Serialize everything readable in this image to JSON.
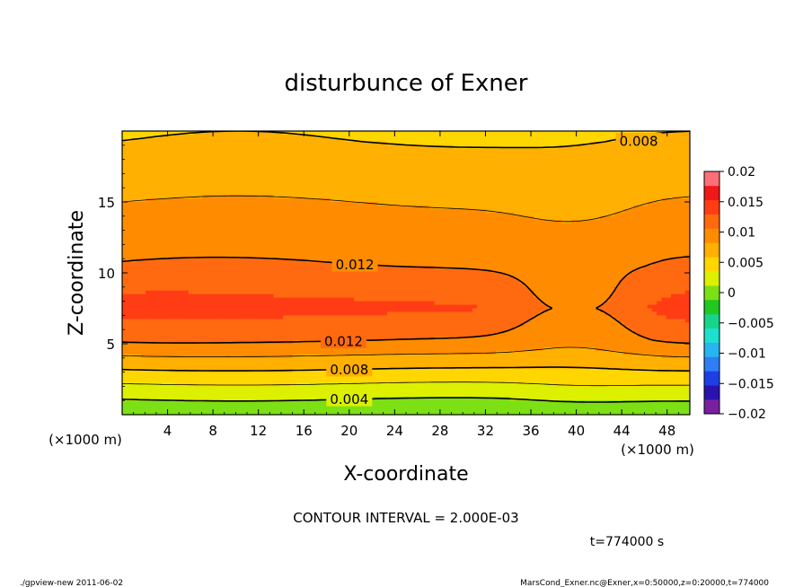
{
  "chart_data": {
    "type": "heatmap",
    "title": "disturbunce of Exner",
    "xlabel": "X-coordinate",
    "ylabel": "Z-coordinate",
    "x_unit": "(×1000 m)",
    "y_unit": "(×1000 m)",
    "xlim": [
      0,
      50
    ],
    "ylim": [
      0,
      20
    ],
    "x_ticks": [
      4,
      8,
      12,
      16,
      20,
      24,
      28,
      32,
      36,
      40,
      44,
      48
    ],
    "y_ticks": [
      5,
      10,
      15
    ],
    "x_tick_labels": [
      "4",
      "8",
      "12",
      "16",
      "20",
      "24",
      "28",
      "32",
      "36",
      "40",
      "44",
      "48"
    ],
    "y_tick_labels": [
      "5",
      "10",
      "15"
    ],
    "colorbar": {
      "min": -0.02,
      "max": 0.02,
      "tick_values": [
        0.02,
        0.015,
        0.01,
        0.005,
        0,
        -0.005,
        -0.01,
        -0.015,
        -0.02
      ],
      "tick_labels": [
        "0.02",
        "0.015",
        "0.01",
        "0.005",
        "0",
        "−0.005",
        "−0.01",
        "−0.015",
        "−0.02"
      ],
      "colors": [
        "#7a1fa0",
        "#2a12b0",
        "#1f3fe6",
        "#2f7ef5",
        "#26b5f0",
        "#1de0d0",
        "#18d48a",
        "#20c820",
        "#7ce014",
        "#dcf000",
        "#ffd600",
        "#ffb000",
        "#ff8c00",
        "#ff6a10",
        "#ff3c14",
        "#f01818",
        "#ff6f78"
      ]
    },
    "contour_interval": 0.002,
    "contour_levels": [
      0.002,
      0.004,
      0.006,
      0.008,
      0.01,
      0.012
    ],
    "contour_labels": [
      {
        "text": "0.004",
        "x": 20,
        "z": 1.1
      },
      {
        "text": "0.008",
        "x": 20,
        "z": 3.2
      },
      {
        "text": "0.012",
        "x": 19.5,
        "z": 5.2
      },
      {
        "text": "0.012",
        "x": 20.5,
        "z": 10.6
      },
      {
        "text": "0.008",
        "x": 45.5,
        "z": 19.3
      }
    ],
    "field_summary": [
      {
        "z": 0.5,
        "value": 0.003
      },
      {
        "z": 1.1,
        "value": 0.004
      },
      {
        "z": 3.2,
        "value": 0.008
      },
      {
        "z": 5.2,
        "value": 0.012
      },
      {
        "z": 7.5,
        "value": 0.0145
      },
      {
        "z": 10.6,
        "value": 0.012
      },
      {
        "z": 15.0,
        "value": 0.01
      },
      {
        "z": 19.3,
        "value": 0.008
      }
    ]
  },
  "annotations": {
    "contour_interval_text": "CONTOUR INTERVAL = 2.000E-03",
    "time_text": "t=774000 s",
    "footer_left": "./gpview-new   2011-06-02",
    "footer_right": "MarsCond_Exner.nc@Exner,x=0:50000,z=0:20000,t=774000"
  }
}
